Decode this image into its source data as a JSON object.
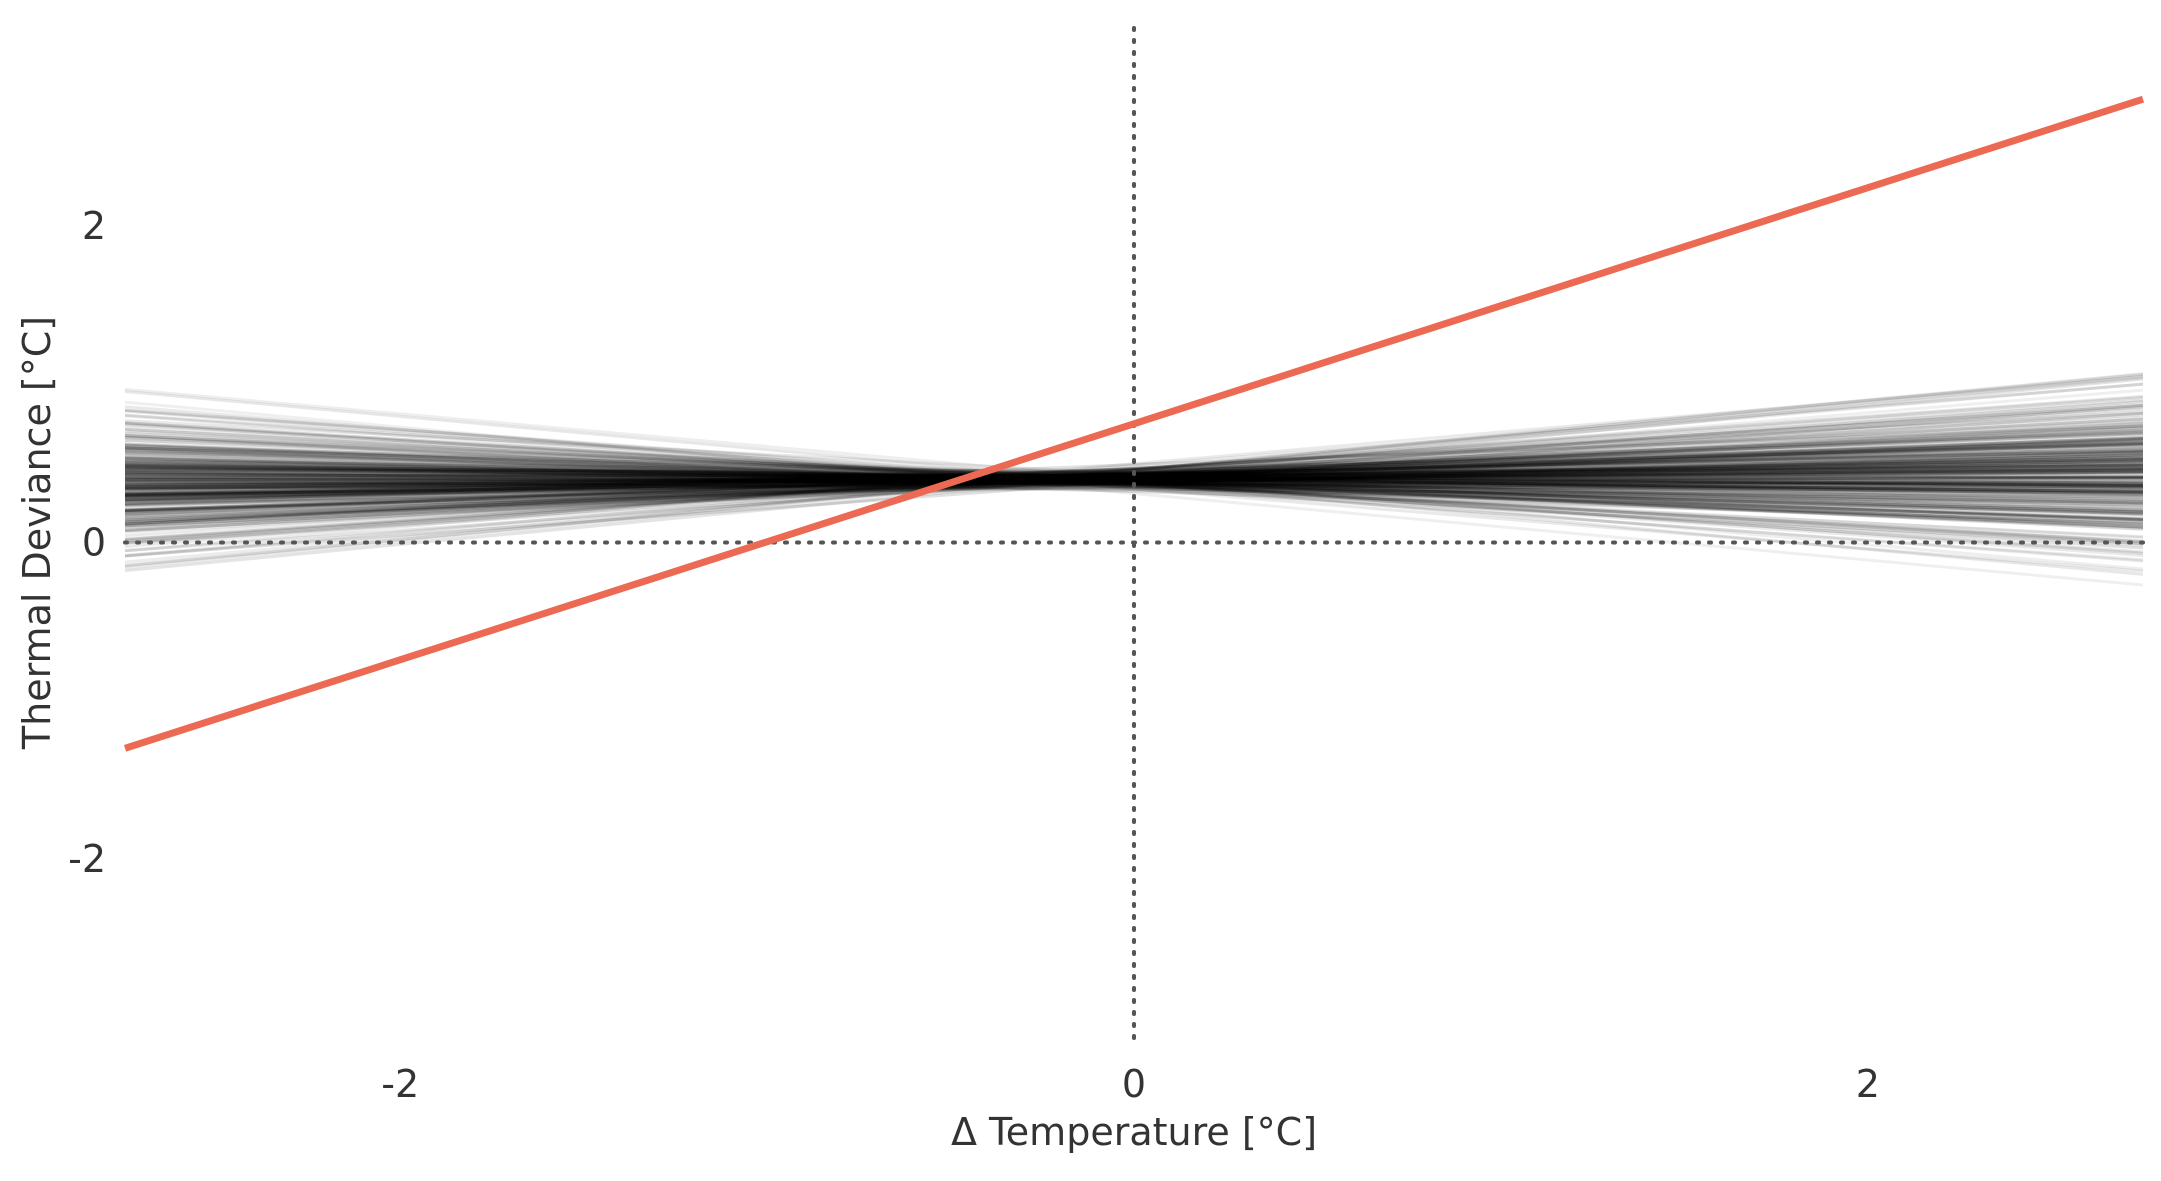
{
  "chart_data": {
    "type": "line",
    "xlabel": "Δ  Temperature [°C]",
    "ylabel": "Thermal Deviance [°C]",
    "xlim": [
      -2.75,
      2.75
    ],
    "ylim": [
      -3.3,
      3.3
    ],
    "x_ticks": [
      {
        "value": -2,
        "label": "-2"
      },
      {
        "value": 0,
        "label": "0"
      },
      {
        "value": 2,
        "label": "2"
      }
    ],
    "y_ticks": [
      {
        "value": 2,
        "label": "2"
      },
      {
        "value": 0,
        "label": "0"
      },
      {
        "value": -2,
        "label": "-2"
      }
    ],
    "reference_lines": [
      {
        "orientation": "horizontal",
        "value": 0,
        "style": "dotted",
        "color": "#555555"
      },
      {
        "orientation": "vertical",
        "value": 0,
        "style": "dotted",
        "color": "#555555"
      }
    ],
    "highlight_line": {
      "color": "#ec6a53",
      "points": [
        [
          -2.75,
          -1.3
        ],
        [
          2.75,
          2.8
        ]
      ]
    },
    "sample_lines": {
      "color": "#000000",
      "count": 300,
      "pivot": [
        -0.25,
        0.4
      ],
      "left_x": -2.75,
      "right_x": 2.75,
      "slope_range": [
        -0.21,
        0.22
      ],
      "note_opacity": "low"
    },
    "grid": false,
    "legend": "none"
  }
}
